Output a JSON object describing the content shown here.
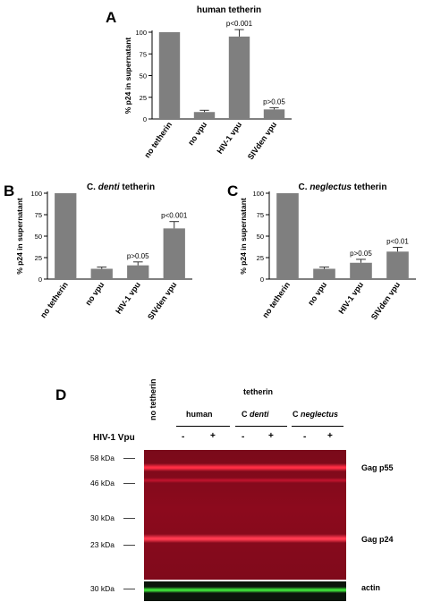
{
  "panels": {
    "a": {
      "letter": "A"
    },
    "b": {
      "letter": "B"
    },
    "c": {
      "letter": "C"
    },
    "d": {
      "letter": "D"
    }
  },
  "chart_data": [
    {
      "type": "bar",
      "panel": "A",
      "title": "human tetherin",
      "title_parts": [
        {
          "text": "human tetherin",
          "italic": false
        }
      ],
      "ylabel": "% p24 in supernatant",
      "categories": [
        "no tetherin",
        "no vpu",
        "HIV-1 vpu",
        "SIVden vpu"
      ],
      "values": [
        100,
        8,
        95,
        11
      ],
      "errors": [
        0,
        2,
        8,
        2
      ],
      "annotations": [
        "",
        "",
        "p<0.001",
        "p>0.05"
      ],
      "ylim": [
        0,
        100
      ],
      "yticks": [
        0,
        25,
        50,
        75,
        100
      ],
      "bar_color": "#7f7f7f",
      "grid": false
    },
    {
      "type": "bar",
      "panel": "B",
      "title": "C. denti tetherin",
      "title_parts": [
        {
          "text": "C. ",
          "italic": false
        },
        {
          "text": "denti",
          "italic": true
        },
        {
          "text": " tetherin",
          "italic": false
        }
      ],
      "ylabel": "% p24 in supernatant",
      "categories": [
        "no tetherin",
        "no vpu",
        "HIV-1 vpu",
        "SIVden vpu"
      ],
      "values": [
        100,
        12,
        16,
        59
      ],
      "errors": [
        0,
        2,
        4,
        8
      ],
      "annotations": [
        "",
        "",
        "p>0.05",
        "p<0.001"
      ],
      "ylim": [
        0,
        100
      ],
      "yticks": [
        0,
        25,
        50,
        75,
        100
      ],
      "bar_color": "#7f7f7f",
      "grid": false
    },
    {
      "type": "bar",
      "panel": "C",
      "title": "C. neglectus tetherin",
      "title_parts": [
        {
          "text": "C. ",
          "italic": false
        },
        {
          "text": "neglectus",
          "italic": true
        },
        {
          "text": " tetherin",
          "italic": false
        }
      ],
      "ylabel": "% p24 in supernatant",
      "categories": [
        "no tetherin",
        "no vpu",
        "HIV-1 vpu",
        "SIVden vpu"
      ],
      "values": [
        100,
        12,
        19,
        32
      ],
      "errors": [
        0,
        2,
        4,
        5
      ],
      "annotations": [
        "",
        "",
        "p>0.05",
        "p<0.01"
      ],
      "ylim": [
        0,
        100
      ],
      "yticks": [
        0,
        25,
        50,
        75,
        100
      ],
      "bar_color": "#7f7f7f",
      "grid": false
    }
  ],
  "blot": {
    "no_tetherin_label": "no tetherin",
    "tetherin_header": "tetherin",
    "groups": [
      {
        "label": "human",
        "italic": ""
      },
      {
        "label": "C",
        "italic": "denti"
      },
      {
        "label": "C",
        "italic": "neglectus"
      }
    ],
    "vpu_label": "HIV-1 Vpu",
    "signs": [
      "-",
      "+",
      "-",
      "+",
      "-",
      "+"
    ],
    "markers": [
      "58 kDa",
      "46 kDa",
      "30 kDa",
      "23 kDa",
      "30 kDa"
    ],
    "band_labels": {
      "p55": "Gag p55",
      "p24": "Gag p24",
      "actin": "actin"
    },
    "colors": {
      "gag_panel": "#8c0a1c",
      "actin_panel": "#0a140a",
      "actin_band": "#3ee23a",
      "gag_band": "#ff2a40"
    }
  }
}
